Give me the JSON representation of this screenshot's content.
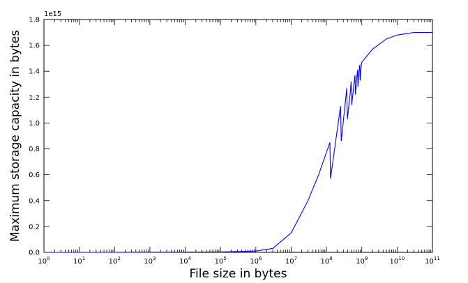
{
  "chart_data": {
    "type": "line",
    "title": "",
    "xlabel": "File size in bytes",
    "ylabel": "Maximum storage capacity in bytes",
    "x_scale": "log",
    "x_exponents": [
      0,
      1,
      2,
      3,
      4,
      5,
      6,
      7,
      8,
      9,
      10,
      11
    ],
    "xlim": [
      1,
      100000000000
    ],
    "y_scale": "linear",
    "ylim": [
      0,
      1800000000000000.0
    ],
    "y_ticks": [
      0.0,
      0.2,
      0.4,
      0.6,
      0.8,
      1.0,
      1.2,
      1.4,
      1.6,
      1.8
    ],
    "y_tick_labels": [
      "0.0",
      "0.2",
      "0.4",
      "0.6",
      "0.8",
      "1.0",
      "1.2",
      "1.4",
      "1.6",
      "1.8"
    ],
    "y_offset_label": "1e15",
    "grid": false,
    "line_color": "#0000ff",
    "series": [
      {
        "x": [
          1,
          10,
          100,
          1000,
          10000,
          100000,
          1000000,
          3000000,
          10000000,
          30000000,
          60000000,
          125000000,
          130000000,
          170000000,
          250000000,
          262000000,
          330000000,
          375000000,
          390000000,
          470000000,
          500000000,
          520000000,
          600000000,
          640000000,
          660000000,
          720000000,
          760000000,
          780000000,
          840000000,
          880000000,
          900000000,
          960000000,
          1000000000,
          2000000000,
          5000000000,
          10000000000,
          30000000000,
          100000000000
        ],
        "y": [
          0,
          10000000000.0,
          100000000000.0,
          1000000000000.0,
          2000000000000.0,
          3000000000000.0,
          10000000000000.0,
          30000000000000.0,
          150000000000000.0,
          400000000000000.0,
          600000000000000.0,
          850000000000000.0,
          570000000000000.0,
          800000000000000.0,
          1130000000000000.0,
          860000000000000.0,
          1120000000000000.0,
          1270000000000000.0,
          1030000000000000.0,
          1230000000000000.0,
          1320000000000000.0,
          1140000000000000.0,
          1300000000000000.0,
          1370000000000000.0,
          1220000000000000.0,
          1350000000000000.0,
          1410000000000000.0,
          1280000000000000.0,
          1410000000000000.0,
          1450000000000000.0,
          1330000000000000.0,
          1440000000000000.0,
          1470000000000000.0,
          1570000000000000.0,
          1650000000000000.0,
          1680000000000000.0,
          1700000000000000.0,
          1700000000000000.0
        ]
      }
    ]
  }
}
